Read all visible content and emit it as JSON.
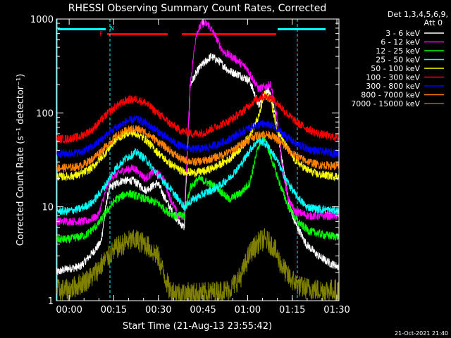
{
  "chart_data": {
    "type": "line",
    "title": "RHESSI Observing Summary Count Rates, Corrected",
    "xlabel": "Start Time (21-Aug-13 23:55:42)",
    "ylabel": "Corrected Count Rate (s⁻¹ detector⁻¹)",
    "y_scale": "log",
    "ylim": [
      1,
      1000
    ],
    "xlim_min": [
      0,
      95
    ],
    "x_ticks": [
      {
        "min": 4.3,
        "label": "00:00"
      },
      {
        "min": 19.3,
        "label": "00:15"
      },
      {
        "min": 34.3,
        "label": "00:30"
      },
      {
        "min": 49.3,
        "label": "00:45"
      },
      {
        "min": 64.3,
        "label": "01:00"
      },
      {
        "min": 79.3,
        "label": "01:15"
      },
      {
        "min": 94.3,
        "label": "01:30"
      }
    ],
    "y_ticks": [
      {
        "value": 1,
        "label": "1"
      },
      {
        "value": 10,
        "label": "10"
      },
      {
        "value": 100,
        "label": "100"
      },
      {
        "value": 1000,
        "label": "1000"
      }
    ],
    "legend_header": [
      "Det 1,3,4,5,6,9,",
      "Att 0"
    ],
    "legend_position": "right",
    "footer_date": "21-Oct-2021 21:40",
    "flags": {
      "F_label": "F",
      "N_label": "N"
    },
    "night_markers_min": [
      18,
      81
    ],
    "series": [
      {
        "name": "3 - 6 keV",
        "color": "#ffffff",
        "points": [
          [
            0,
            2
          ],
          [
            4,
            2.2
          ],
          [
            8,
            2.3
          ],
          [
            12,
            3.2
          ],
          [
            15,
            4.2
          ],
          [
            17,
            12
          ],
          [
            18,
            16
          ],
          [
            22,
            19
          ],
          [
            26,
            19
          ],
          [
            30,
            15
          ],
          [
            34,
            18
          ],
          [
            38,
            10
          ],
          [
            41,
            7
          ],
          [
            43,
            6
          ],
          [
            45,
            200
          ],
          [
            48,
            300
          ],
          [
            52,
            400
          ],
          [
            55,
            350
          ],
          [
            58,
            280
          ],
          [
            62,
            250
          ],
          [
            65,
            220
          ],
          [
            68,
            120
          ],
          [
            71,
            180
          ],
          [
            73,
            120
          ],
          [
            76,
            30
          ],
          [
            78,
            12
          ],
          [
            80,
            7
          ],
          [
            84,
            4
          ],
          [
            88,
            3
          ],
          [
            92,
            2.5
          ],
          [
            95,
            2.3
          ]
        ]
      },
      {
        "name": "6 - 12 keV",
        "color": "#ff00ff",
        "points": [
          [
            0,
            7
          ],
          [
            4,
            7
          ],
          [
            10,
            7
          ],
          [
            14,
            8
          ],
          [
            18,
            20
          ],
          [
            22,
            24
          ],
          [
            26,
            26
          ],
          [
            30,
            20
          ],
          [
            33,
            24
          ],
          [
            36,
            20
          ],
          [
            38,
            13
          ],
          [
            41,
            8
          ],
          [
            43,
            8
          ],
          [
            45,
            200
          ],
          [
            47,
            700
          ],
          [
            49,
            900
          ],
          [
            51,
            880
          ],
          [
            53,
            700
          ],
          [
            56,
            450
          ],
          [
            60,
            380
          ],
          [
            64,
            300
          ],
          [
            68,
            180
          ],
          [
            72,
            200
          ],
          [
            74,
            100
          ],
          [
            76,
            25
          ],
          [
            78,
            12
          ],
          [
            80,
            9
          ],
          [
            85,
            8
          ],
          [
            90,
            8
          ],
          [
            95,
            8
          ]
        ]
      },
      {
        "name": "12 - 25 keV",
        "color": "#00ff00",
        "points": [
          [
            0,
            4.5
          ],
          [
            4,
            4.5
          ],
          [
            10,
            5
          ],
          [
            14,
            6.5
          ],
          [
            17,
            9
          ],
          [
            20,
            12
          ],
          [
            24,
            14
          ],
          [
            27,
            13
          ],
          [
            30,
            12
          ],
          [
            34,
            11
          ],
          [
            37,
            9
          ],
          [
            40,
            8
          ],
          [
            43,
            8
          ],
          [
            45,
            16
          ],
          [
            48,
            20
          ],
          [
            51,
            18
          ],
          [
            54,
            16
          ],
          [
            58,
            12
          ],
          [
            62,
            14
          ],
          [
            65,
            18
          ],
          [
            68,
            45
          ],
          [
            70,
            55
          ],
          [
            72,
            35
          ],
          [
            75,
            18
          ],
          [
            78,
            10
          ],
          [
            81,
            7
          ],
          [
            85,
            5.5
          ],
          [
            90,
            5
          ],
          [
            95,
            4.8
          ]
        ]
      },
      {
        "name": "25 - 50 keV",
        "color": "#00ffff",
        "points": [
          [
            0,
            9
          ],
          [
            4,
            9
          ],
          [
            8,
            9.5
          ],
          [
            12,
            11
          ],
          [
            16,
            16
          ],
          [
            20,
            26
          ],
          [
            24,
            34
          ],
          [
            27,
            38
          ],
          [
            30,
            32
          ],
          [
            34,
            22
          ],
          [
            38,
            16
          ],
          [
            41,
            12
          ],
          [
            43,
            10
          ],
          [
            46,
            12
          ],
          [
            50,
            14
          ],
          [
            54,
            16
          ],
          [
            58,
            20
          ],
          [
            62,
            28
          ],
          [
            65,
            40
          ],
          [
            68,
            52
          ],
          [
            71,
            45
          ],
          [
            74,
            32
          ],
          [
            77,
            20
          ],
          [
            80,
            14
          ],
          [
            84,
            10
          ],
          [
            88,
            9.5
          ],
          [
            95,
            9
          ]
        ]
      },
      {
        "name": "50 - 100 keV",
        "color": "#ffff00",
        "points": [
          [
            0,
            21
          ],
          [
            4,
            21
          ],
          [
            8,
            22
          ],
          [
            12,
            26
          ],
          [
            16,
            36
          ],
          [
            20,
            52
          ],
          [
            24,
            62
          ],
          [
            27,
            60
          ],
          [
            30,
            52
          ],
          [
            34,
            38
          ],
          [
            38,
            29
          ],
          [
            42,
            24
          ],
          [
            46,
            23
          ],
          [
            50,
            24
          ],
          [
            54,
            27
          ],
          [
            58,
            32
          ],
          [
            62,
            42
          ],
          [
            65,
            58
          ],
          [
            68,
            90
          ],
          [
            70,
            160
          ],
          [
            72,
            140
          ],
          [
            74,
            70
          ],
          [
            77,
            45
          ],
          [
            80,
            32
          ],
          [
            84,
            25
          ],
          [
            88,
            22
          ],
          [
            95,
            21
          ]
        ]
      },
      {
        "name": "100 - 300 keV",
        "color": "#ff0000",
        "points": [
          [
            0,
            53
          ],
          [
            4,
            53
          ],
          [
            8,
            56
          ],
          [
            12,
            66
          ],
          [
            16,
            90
          ],
          [
            20,
            118
          ],
          [
            24,
            138
          ],
          [
            27,
            140
          ],
          [
            30,
            128
          ],
          [
            34,
            100
          ],
          [
            38,
            78
          ],
          [
            42,
            64
          ],
          [
            46,
            60
          ],
          [
            50,
            62
          ],
          [
            54,
            72
          ],
          [
            58,
            82
          ],
          [
            62,
            100
          ],
          [
            66,
            130
          ],
          [
            69,
            150
          ],
          [
            72,
            145
          ],
          [
            75,
            120
          ],
          [
            78,
            95
          ],
          [
            81,
            78
          ],
          [
            85,
            66
          ],
          [
            88,
            60
          ],
          [
            95,
            54
          ]
        ]
      },
      {
        "name": "300 - 800 keV",
        "color": "#0000ff",
        "points": [
          [
            0,
            37
          ],
          [
            4,
            37
          ],
          [
            8,
            38
          ],
          [
            12,
            43
          ],
          [
            16,
            55
          ],
          [
            20,
            70
          ],
          [
            24,
            82
          ],
          [
            27,
            86
          ],
          [
            30,
            78
          ],
          [
            34,
            64
          ],
          [
            38,
            52
          ],
          [
            42,
            44
          ],
          [
            46,
            41
          ],
          [
            50,
            42
          ],
          [
            54,
            46
          ],
          [
            58,
            52
          ],
          [
            62,
            62
          ],
          [
            66,
            72
          ],
          [
            69,
            76
          ],
          [
            72,
            74
          ],
          [
            75,
            64
          ],
          [
            78,
            54
          ],
          [
            81,
            46
          ],
          [
            85,
            41
          ],
          [
            88,
            39
          ],
          [
            95,
            37
          ]
        ]
      },
      {
        "name": "800 - 7000 keV",
        "color": "#ff8000",
        "points": [
          [
            0,
            26
          ],
          [
            4,
            26
          ],
          [
            8,
            27
          ],
          [
            12,
            32
          ],
          [
            16,
            42
          ],
          [
            20,
            56
          ],
          [
            24,
            66
          ],
          [
            27,
            68
          ],
          [
            30,
            62
          ],
          [
            34,
            50
          ],
          [
            38,
            40
          ],
          [
            42,
            32
          ],
          [
            46,
            30
          ],
          [
            50,
            31
          ],
          [
            54,
            34
          ],
          [
            58,
            38
          ],
          [
            62,
            46
          ],
          [
            66,
            55
          ],
          [
            69,
            60
          ],
          [
            72,
            58
          ],
          [
            75,
            50
          ],
          [
            78,
            40
          ],
          [
            81,
            34
          ],
          [
            85,
            30
          ],
          [
            88,
            28
          ],
          [
            95,
            27
          ]
        ]
      },
      {
        "name": "7000 - 15000 keV",
        "color": "#808000",
        "points": [
          [
            0,
            1.3
          ],
          [
            4,
            1.3
          ],
          [
            8,
            1.5
          ],
          [
            12,
            1.8
          ],
          [
            16,
            2.6
          ],
          [
            20,
            3.6
          ],
          [
            24,
            4.3
          ],
          [
            27,
            4.4
          ],
          [
            30,
            4
          ],
          [
            34,
            3
          ],
          [
            36,
            2
          ],
          [
            38,
            1.3
          ],
          [
            42,
            1.2
          ],
          [
            50,
            1.2
          ],
          [
            58,
            1.3
          ],
          [
            62,
            1.8
          ],
          [
            65,
            3.2
          ],
          [
            68,
            4.2
          ],
          [
            70,
            4.5
          ],
          [
            73,
            3.8
          ],
          [
            75,
            2.6
          ],
          [
            78,
            1.8
          ],
          [
            82,
            1.4
          ],
          [
            88,
            1.3
          ],
          [
            95,
            1.3
          ]
        ]
      }
    ]
  }
}
